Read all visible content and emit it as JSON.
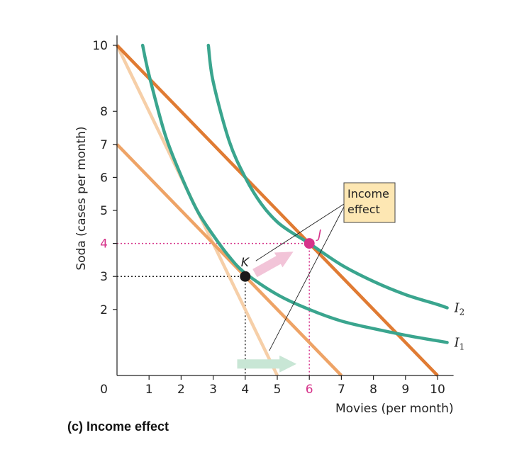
{
  "chart_data": {
    "type": "line",
    "caption": "(c) Income effect",
    "xlabel": "Movies (per month)",
    "ylabel": "Soda (cases per month)",
    "xlim": [
      0,
      10.5
    ],
    "ylim": [
      0,
      10.3
    ],
    "origin_label": "0",
    "x_ticks": [
      {
        "value": 1,
        "label": "1"
      },
      {
        "value": 2,
        "label": "2"
      },
      {
        "value": 3,
        "label": "3"
      },
      {
        "value": 4,
        "label": "4"
      },
      {
        "value": 5,
        "label": "5"
      },
      {
        "value": 6,
        "label": "6",
        "highlight": true
      },
      {
        "value": 7,
        "label": "7"
      },
      {
        "value": 8,
        "label": "8"
      },
      {
        "value": 9,
        "label": "9"
      },
      {
        "value": 10,
        "label": "10"
      }
    ],
    "y_ticks": [
      {
        "value": 2,
        "label": "2"
      },
      {
        "value": 3,
        "label": "3"
      },
      {
        "value": 4,
        "label": "4",
        "highlight": true
      },
      {
        "value": 5,
        "label": "5"
      },
      {
        "value": 6,
        "label": "6"
      },
      {
        "value": 7,
        "label": "7"
      },
      {
        "value": 8,
        "label": "8"
      },
      {
        "value": 10,
        "label": "10"
      }
    ],
    "budget_lines": [
      {
        "id": "original",
        "x": [
          0,
          5
        ],
        "y": [
          10,
          0
        ],
        "color": "#f6cfa8"
      },
      {
        "id": "new-lower",
        "x": [
          0,
          7
        ],
        "y": [
          7,
          0
        ],
        "color": "#eea366"
      },
      {
        "id": "new-higher",
        "x": [
          0,
          10
        ],
        "y": [
          10,
          0
        ],
        "color": "#e07b33"
      }
    ],
    "indifference_curves": [
      {
        "label": "I",
        "subscript": "1",
        "color": "#3aa58e",
        "points": [
          [
            0.8,
            10
          ],
          [
            1,
            9.1
          ],
          [
            1.5,
            7.3
          ],
          [
            2,
            6.05
          ],
          [
            2.5,
            5.0
          ],
          [
            3,
            4.25
          ],
          [
            3.5,
            3.6
          ],
          [
            4,
            3.1
          ],
          [
            5,
            2.45
          ],
          [
            6,
            2.0
          ],
          [
            7,
            1.65
          ],
          [
            8,
            1.42
          ],
          [
            9,
            1.22
          ],
          [
            10,
            1.05
          ],
          [
            10.3,
            1.0
          ]
        ]
      },
      {
        "label": "I",
        "subscript": "2",
        "color": "#3aa58e",
        "points": [
          [
            2.85,
            10
          ],
          [
            3,
            8.9
          ],
          [
            3.5,
            7.1
          ],
          [
            4,
            6.0
          ],
          [
            4.5,
            5.2
          ],
          [
            5,
            4.65
          ],
          [
            5.5,
            4.3
          ],
          [
            6,
            4.0
          ],
          [
            7,
            3.35
          ],
          [
            8,
            2.85
          ],
          [
            9,
            2.45
          ],
          [
            10,
            2.15
          ],
          [
            10.3,
            2.05
          ]
        ]
      }
    ],
    "points": [
      {
        "label": "K",
        "x": 4,
        "y": 3,
        "color": "#1a1a1a",
        "label_color": "#222"
      },
      {
        "label": "J",
        "x": 6,
        "y": 4,
        "color": "#d6338a",
        "label_color": "#d6338a"
      }
    ],
    "arrows": [
      {
        "from": [
          4.3,
          3.1
        ],
        "to": [
          5.5,
          3.75
        ],
        "color": "#f2c4d8"
      },
      {
        "from": [
          3.75,
          0.35
        ],
        "to": [
          5.6,
          0.35
        ],
        "color": "#c8e6d5"
      }
    ],
    "callout": {
      "lines": [
        "Income",
        "effect"
      ],
      "fill": "#fde7b3"
    }
  }
}
